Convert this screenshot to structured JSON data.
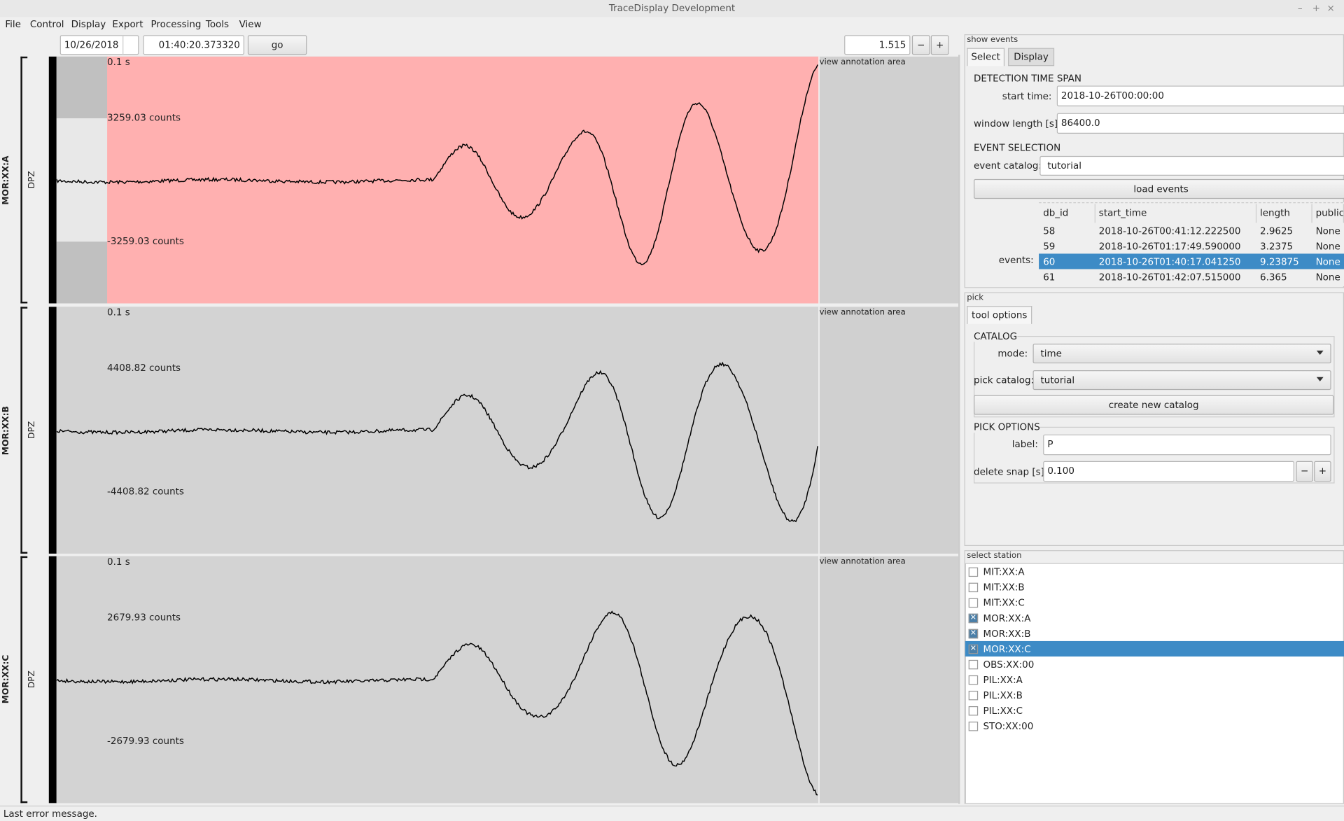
{
  "window_title": "TraceDisplay Development",
  "window_controls": [
    "–",
    "+",
    "×"
  ],
  "menu": [
    "File",
    "Control",
    "Display",
    "Export",
    "Processing",
    "Tools",
    "View"
  ],
  "toolbar": {
    "date": "10/26/2018",
    "time": "01:40:20.373320",
    "go": "go",
    "zoom": "1.515",
    "minus": "−",
    "plus": "+"
  },
  "traces": [
    {
      "station": "MOR:XX:A",
      "channel": "DPZ",
      "scale": "0.1 s",
      "max": "3259.03 counts",
      "min": "-3259.03 counts",
      "annotation": "view annotation area",
      "background": "#ffb0b0"
    },
    {
      "station": "MOR:XX:B",
      "channel": "DPZ",
      "scale": "0.1 s",
      "max": "4408.82 counts",
      "min": "-4408.82 counts",
      "annotation": "view annotation area",
      "background": "#d3d3d3"
    },
    {
      "station": "MOR:XX:C",
      "channel": "DPZ",
      "scale": "0.1 s",
      "max": "2679.93 counts",
      "min": "-2679.93 counts",
      "annotation": "view annotation area",
      "background": "#d3d3d3"
    }
  ],
  "show_events": {
    "title": "show events",
    "tabs": [
      "Select",
      "Display"
    ],
    "detection_time_span": "DETECTION TIME SPAN",
    "start_time_label": "start time:",
    "start_time": "2018-10-26T00:00:00",
    "window_length_label": "window length [s]:",
    "window_length": "86400.0",
    "event_selection": "EVENT SELECTION",
    "event_catalog_label": "event catalog:",
    "event_catalog": "tutorial",
    "load_events": "load events",
    "events_label": "events:",
    "table": {
      "header": [
        "db_id",
        "start_time",
        "length",
        "public_"
      ],
      "rows": [
        [
          "58",
          "2018-10-26T00:41:12.222500",
          "2.9625",
          "None"
        ],
        [
          "59",
          "2018-10-26T01:17:49.590000",
          "3.2375",
          "None"
        ],
        [
          "60",
          "2018-10-26T01:40:17.041250",
          "9.23875",
          "None"
        ],
        [
          "61",
          "2018-10-26T01:42:07.515000",
          "6.365",
          "None"
        ]
      ],
      "selected_row": 2
    }
  },
  "pick": {
    "title": "pick",
    "tab": "tool options",
    "catalog": "CATALOG",
    "mode_label": "mode:",
    "mode": "time",
    "pick_catalog_label": "pick catalog:",
    "pick_catalog": "tutorial",
    "create_new_catalog": "create new catalog",
    "pick_options": "PICK OPTIONS",
    "label_label": "label:",
    "label": "P",
    "delete_snap_label": "delete snap [s]:",
    "delete_snap": "0.100"
  },
  "select_station": {
    "title": "select station",
    "stations": [
      {
        "name": "MIT:XX:A",
        "checked": false,
        "selected": false
      },
      {
        "name": "MIT:XX:B",
        "checked": false,
        "selected": false
      },
      {
        "name": "MIT:XX:C",
        "checked": false,
        "selected": false
      },
      {
        "name": "MOR:XX:A",
        "checked": true,
        "selected": false
      },
      {
        "name": "MOR:XX:B",
        "checked": true,
        "selected": false
      },
      {
        "name": "MOR:XX:C",
        "checked": true,
        "selected": true
      },
      {
        "name": "OBS:XX:00",
        "checked": false,
        "selected": false
      },
      {
        "name": "PIL:XX:A",
        "checked": false,
        "selected": false
      },
      {
        "name": "PIL:XX:B",
        "checked": false,
        "selected": false
      },
      {
        "name": "PIL:XX:C",
        "checked": false,
        "selected": false
      },
      {
        "name": "STO:XX:00",
        "checked": false,
        "selected": false
      }
    ]
  },
  "status": "Last error message."
}
